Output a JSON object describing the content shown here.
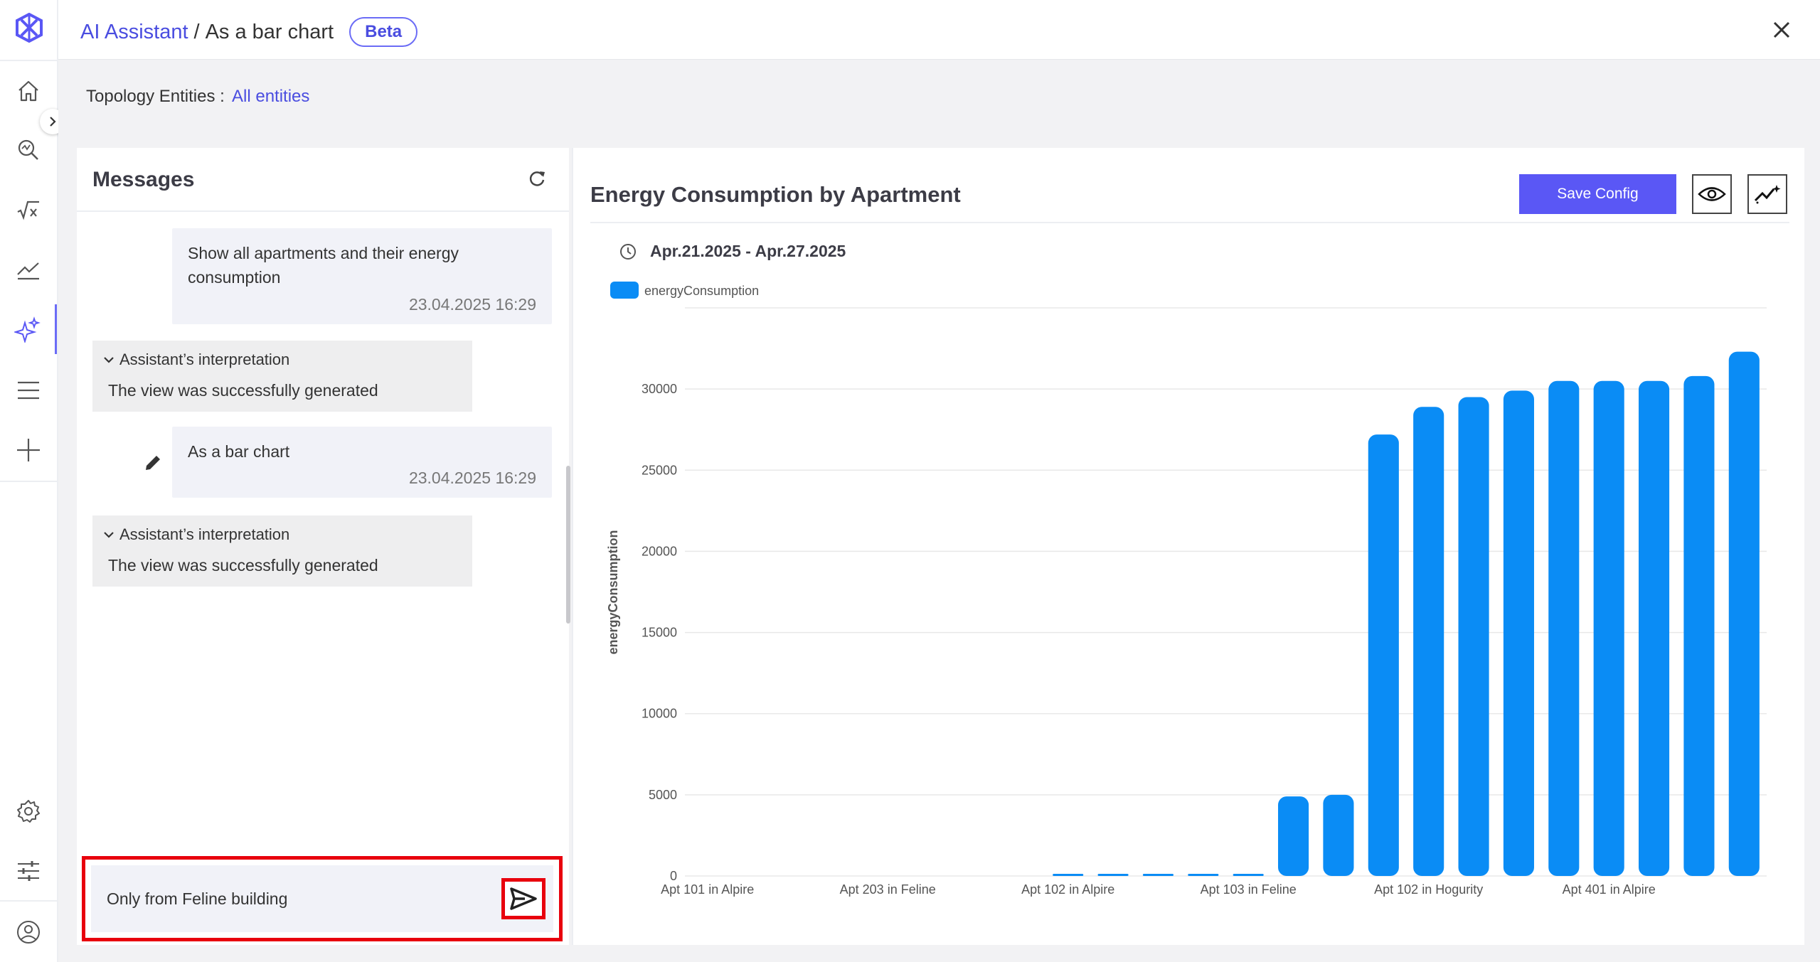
{
  "header": {
    "app_link": "AI Assistant",
    "separator": "/",
    "current": "As a bar chart",
    "badge": "Beta"
  },
  "nav": {
    "items": [
      "logo-icon",
      "home-icon",
      "search-analytics-icon",
      "formula-icon",
      "trend-icon",
      "ai-sparkle-icon",
      "menu-list-icon",
      "add-icon",
      "settings-icon",
      "sliders-icon",
      "user-icon"
    ],
    "accent": "#6b6cf6"
  },
  "topology": {
    "label": "Topology Entities :",
    "value": "All entities"
  },
  "messages": {
    "title": "Messages",
    "items": [
      {
        "type": "user",
        "text": "Show all apartments and their energy consumption",
        "time": "23.04.2025 16:29"
      },
      {
        "type": "assistant",
        "header": "Assistant’s interpretation",
        "text": "The view was successfully generated"
      },
      {
        "type": "user",
        "text": "As a bar chart",
        "time": "23.04.2025 16:29"
      },
      {
        "type": "assistant",
        "header": "Assistant’s interpretation",
        "text": "The view was successfully generated"
      }
    ],
    "input_value": "Only from Feline building"
  },
  "chart_panel": {
    "title": "Energy Consumption by Apartment",
    "save_label": "Save Config",
    "date_range": "Apr.21.2025 - Apr.27.2025"
  },
  "chart_data": {
    "type": "bar",
    "title": "Energy Consumption by Apartment",
    "xlabel": "",
    "ylabel": "energyConsumption",
    "ylim": [
      0,
      35000
    ],
    "yticks": [
      0,
      5000,
      10000,
      15000,
      20000,
      25000,
      30000
    ],
    "series": [
      {
        "name": "energyConsumption",
        "color": "#0a8cf5",
        "values": [
          0,
          0,
          0,
          0,
          0,
          0,
          0,
          0,
          120,
          120,
          120,
          120,
          120,
          4900,
          5000,
          27200,
          28900,
          29500,
          29900,
          30500,
          30500,
          30500,
          30800,
          32300
        ]
      }
    ],
    "x_tick_labels": [
      "Apt 101 in Alpire",
      "Apt 203 in Feline",
      "Apt 102 in Alpire",
      "Apt 103 in Feline",
      "Apt 102 in Hogurity",
      "Apt 401 in Alpire"
    ],
    "x_tick_positions": [
      0,
      4,
      8,
      12,
      16,
      20
    ],
    "legend_position": "top-left",
    "grid": true
  }
}
